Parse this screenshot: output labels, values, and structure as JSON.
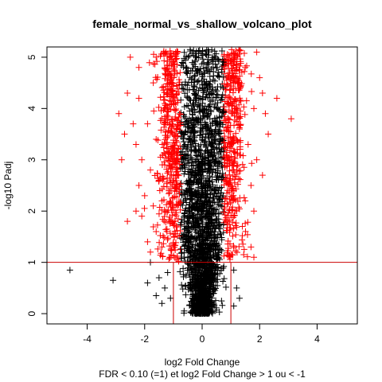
{
  "chart_data": {
    "type": "scatter",
    "title": "female_normal_vs_shallow_volcano_plot",
    "xlabel": "log2 Fold Change",
    "ylabel": "-log10 Padj",
    "subtitle": "FDR < 0.10 (=1) et log2 Fold Change > 1 ou < -1",
    "xlim": [
      -5.4,
      5.4
    ],
    "ylim": [
      -0.2,
      5.2
    ],
    "x_ticks": [
      "-4",
      "-2",
      "0",
      "2",
      "4"
    ],
    "y_ticks": [
      "0",
      "1",
      "2",
      "3",
      "4",
      "5"
    ],
    "thresholds": {
      "padj_line": 1,
      "fc_lines": [
        -1,
        1
      ]
    },
    "colors": {
      "significant": "#ff0000",
      "not_significant": "#000000",
      "threshold_line": "#cc0000"
    },
    "series": [
      {
        "values": [
          [
            -2.5,
            5.0
          ],
          [
            -2.6,
            4.3
          ],
          [
            -2.2,
            4.2
          ],
          [
            -2.9,
            3.9
          ],
          [
            -1.9,
            3.7
          ],
          [
            -2.7,
            3.5
          ],
          [
            -2.3,
            3.3
          ],
          [
            -2.1,
            3.0
          ],
          [
            -2.8,
            3.0
          ],
          [
            -1.8,
            2.8
          ],
          [
            -2.2,
            2.5
          ],
          [
            -2.0,
            2.3
          ],
          [
            -1.7,
            2.1
          ],
          [
            -2.1,
            1.9
          ],
          [
            -2.6,
            1.8
          ],
          [
            -1.6,
            1.6
          ],
          [
            -1.9,
            1.4
          ],
          [
            -1.4,
            1.3
          ],
          [
            -1.8,
            1.2
          ],
          [
            -2.2,
            4.8
          ],
          [
            -2.4,
            3.7
          ],
          [
            -1.6,
            3.4
          ],
          [
            -1.5,
            2.6
          ],
          [
            -2.3,
            2.0
          ],
          [
            -1.7,
            4.5
          ],
          [
            -1.2,
            4.0
          ],
          [
            -1.3,
            2.9
          ],
          [
            -1.4,
            2.2
          ],
          [
            -1.6,
            5.0
          ],
          [
            -1.1,
            3.1
          ],
          [
            2.6,
            4.2
          ],
          [
            3.1,
            3.8
          ],
          [
            2.0,
            4.6
          ],
          [
            1.8,
            4.0
          ],
          [
            2.2,
            3.9
          ],
          [
            2.3,
            3.5
          ],
          [
            1.6,
            3.3
          ],
          [
            1.9,
            3.0
          ],
          [
            2.1,
            2.7
          ],
          [
            1.7,
            2.5
          ],
          [
            1.5,
            2.2
          ],
          [
            1.8,
            2.0
          ],
          [
            1.4,
            1.7
          ],
          [
            1.7,
            1.3
          ],
          [
            1.8,
            1.1
          ],
          [
            1.5,
            4.8
          ],
          [
            1.9,
            5.1
          ],
          [
            2.1,
            4.3
          ],
          [
            1.3,
            3.6
          ],
          [
            1.2,
            2.8
          ]
        ]
      },
      {
        "values": [
          [
            -4.6,
            0.85
          ],
          [
            -3.1,
            0.65
          ],
          [
            -1.8,
            1.0
          ],
          [
            -1.9,
            0.6
          ],
          [
            -1.6,
            0.35
          ],
          [
            -1.4,
            0.2
          ],
          [
            -1.2,
            0.8
          ],
          [
            -1.5,
            0.7
          ],
          [
            1.1,
            0.85
          ],
          [
            1.2,
            0.5
          ],
          [
            1.3,
            0.3
          ],
          [
            1.1,
            0.15
          ],
          [
            -1.3,
            0.5
          ],
          [
            -1.1,
            0.3
          ]
        ]
      }
    ]
  }
}
